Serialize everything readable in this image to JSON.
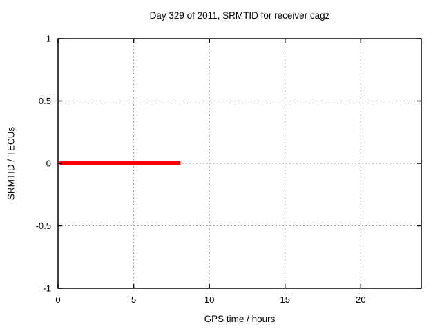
{
  "chart_data": {
    "type": "line",
    "title": "Day 329 of 2011, SRMTID for receiver cagz",
    "xlabel": "GPS time / hours",
    "ylabel": "SRMTID / TECUs",
    "xlim": [
      0,
      24
    ],
    "ylim": [
      -1,
      1
    ],
    "grid": true,
    "legend": "none",
    "xticks": [
      {
        "value": 0,
        "label": "0"
      },
      {
        "value": 5,
        "label": "5"
      },
      {
        "value": 10,
        "label": "10"
      },
      {
        "value": 15,
        "label": "15"
      },
      {
        "value": 20,
        "label": "20"
      }
    ],
    "yticks": [
      {
        "value": -1,
        "label": "-1"
      },
      {
        "value": -0.5,
        "label": "-0.5"
      },
      {
        "value": 0,
        "label": "0"
      },
      {
        "value": 0.5,
        "label": "0.5"
      },
      {
        "value": 1,
        "label": "1"
      }
    ],
    "series": [
      {
        "name": "srmtid",
        "color": "#ff0000",
        "line_width": 6,
        "points": [
          [
            0.1,
            0
          ],
          [
            8.1,
            0
          ]
        ]
      }
    ],
    "colors": {
      "background": "#ffffff",
      "axis": "#000000",
      "grid": "#9a9a9a",
      "text": "#000000"
    }
  }
}
